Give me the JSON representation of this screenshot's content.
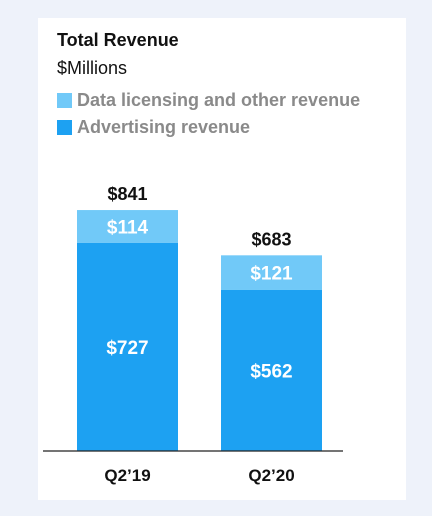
{
  "chart_data": {
    "type": "bar",
    "stacked": true,
    "title": "Total Revenue",
    "subtitle": "$Millions",
    "categories": [
      "Q2’19",
      "Q2’20"
    ],
    "series": [
      {
        "name": "Advertising revenue",
        "values": [
          727,
          562
        ],
        "value_labels": [
          "$727",
          "$562"
        ],
        "color": "#1da1f2"
      },
      {
        "name": "Data licensing and other revenue",
        "values": [
          114,
          121
        ],
        "value_labels": [
          "$114",
          "$121"
        ],
        "color": "#71c9f8"
      }
    ],
    "totals": [
      841,
      683
    ],
    "total_labels": [
      "$841",
      "$683"
    ],
    "legend_position": "top-left",
    "legend_order": [
      "Data licensing and other revenue",
      "Advertising revenue"
    ],
    "grid": false
  }
}
